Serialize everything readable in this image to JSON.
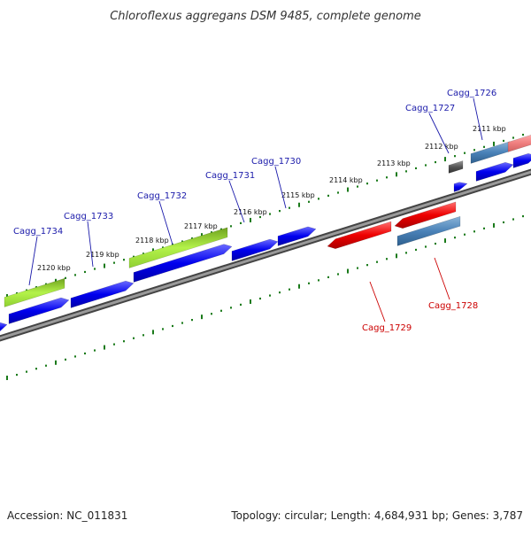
{
  "title": "Chloroflexus aggregans DSM 9485, complete genome",
  "footer": {
    "accession": "Accession: NC_011831",
    "summary": "Topology: circular; Length: 4,684,931 bp; Genes: 3,787"
  },
  "colors": {
    "backbone": "#888888",
    "tick": "#1a7a1a",
    "forward_label": "#1a1aaa",
    "reverse_label": "#cc0000"
  },
  "kbp_labels": [
    "2111 kbp",
    "2112 kbp",
    "2113 kbp",
    "2114 kbp",
    "2115 kbp",
    "2116 kbp",
    "2117 kbp",
    "2118 kbp",
    "2119 kbp",
    "2120 kbp"
  ],
  "genes": [
    {
      "id": "Cagg_1726",
      "label": "Cagg_1726",
      "strand": "forward",
      "label_color": "#1a1aaa"
    },
    {
      "id": "Cagg_1727",
      "label": "Cagg_1727",
      "strand": "forward",
      "label_color": "#1a1aaa"
    },
    {
      "id": "Cagg_1728",
      "label": "Cagg_1728",
      "strand": "reverse",
      "label_color": "#cc0000"
    },
    {
      "id": "Cagg_1729",
      "label": "Cagg_1729",
      "strand": "reverse",
      "label_color": "#cc0000"
    },
    {
      "id": "Cagg_1730",
      "label": "Cagg_1730",
      "strand": "forward",
      "label_color": "#1a1aaa"
    },
    {
      "id": "Cagg_1731",
      "label": "Cagg_1731",
      "strand": "forward",
      "label_color": "#1a1aaa"
    },
    {
      "id": "Cagg_1732",
      "label": "Cagg_1732",
      "strand": "forward",
      "label_color": "#1a1aaa"
    },
    {
      "id": "Cagg_1733",
      "label": "Cagg_1733",
      "strand": "forward",
      "label_color": "#1a1aaa"
    },
    {
      "id": "Cagg_1734",
      "label": "Cagg_1734",
      "strand": "forward",
      "label_color": "#1a1aaa"
    }
  ]
}
